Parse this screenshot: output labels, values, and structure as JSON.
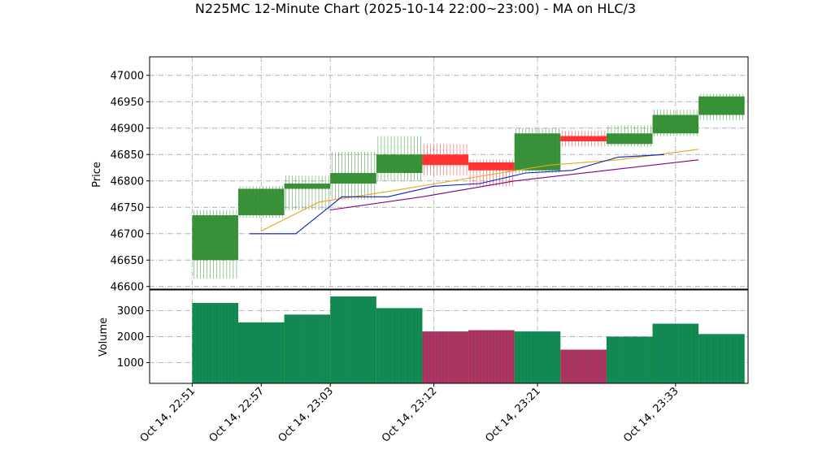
{
  "chart_data": {
    "type": "candlestick",
    "title": "N225MC 12-Minute Chart (2025-10-14 22:00~23:00) - MA on HLC/3",
    "price_panel": {
      "ylabel": "Price",
      "ylim": [
        46595,
        47035
      ],
      "yticks": [
        46600,
        46650,
        46700,
        46750,
        46800,
        46850,
        46900,
        46950,
        47000
      ],
      "grid": true
    },
    "volume_panel": {
      "ylabel": "Volume",
      "ylim": [
        200,
        3800
      ],
      "yticks": [
        1000,
        2000,
        3000
      ],
      "grid": true
    },
    "x_axis": {
      "minute_range": [
        -3.7,
        48.3
      ],
      "tick_minutes": [
        0,
        6,
        12,
        21,
        30,
        42
      ],
      "tick_labels": [
        "Oct 14, 22:51",
        "Oct 14, 22:57",
        "Oct 14, 23:03",
        "Oct 14, 23:12",
        "Oct 14, 23:21",
        "Oct 14, 23:33"
      ],
      "note_minutes": "minutes after 22:51"
    },
    "colors": {
      "up": "#2e8b2e",
      "down": "#ff2a2a",
      "ma_short": "#0a1fbf",
      "ma_mid": "#e6a817",
      "ma_long": "#800080",
      "volume_up": "#0f8a4a",
      "volume_down": "#b0305a"
    },
    "candles": [
      {
        "start": 0,
        "end": 4,
        "open": 46650,
        "close": 46735,
        "high": 46745,
        "low": 46615,
        "volume": 3300
      },
      {
        "start": 4,
        "end": 8,
        "open": 46735,
        "close": 46785,
        "high": 46790,
        "low": 46730,
        "volume": 2550
      },
      {
        "start": 8,
        "end": 12,
        "open": 46785,
        "close": 46795,
        "high": 46810,
        "low": 46745,
        "volume": 2850
      },
      {
        "start": 12,
        "end": 16,
        "open": 46795,
        "close": 46815,
        "high": 46855,
        "low": 46765,
        "volume": 3550
      },
      {
        "start": 16,
        "end": 20,
        "open": 46815,
        "close": 46850,
        "high": 46885,
        "low": 46800,
        "volume": 3100
      },
      {
        "start": 20,
        "end": 24,
        "open": 46850,
        "close": 46830,
        "high": 46870,
        "low": 46810,
        "volume": 2200
      },
      {
        "start": 24,
        "end": 28,
        "open": 46835,
        "close": 46820,
        "high": 46840,
        "low": 46790,
        "volume": 2250
      },
      {
        "start": 28,
        "end": 32,
        "open": 46820,
        "close": 46890,
        "high": 46900,
        "low": 46815,
        "volume": 2200
      },
      {
        "start": 32,
        "end": 36,
        "open": 46885,
        "close": 46875,
        "high": 46895,
        "low": 46865,
        "volume": 1500
      },
      {
        "start": 36,
        "end": 40,
        "open": 46870,
        "close": 46890,
        "high": 46905,
        "low": 46865,
        "volume": 2000
      },
      {
        "start": 40,
        "end": 44,
        "open": 46890,
        "close": 46925,
        "high": 46935,
        "low": 46885,
        "volume": 2500
      },
      {
        "start": 44,
        "end": 48,
        "open": 46925,
        "close": 46960,
        "high": 46965,
        "low": 46915,
        "volume": 2100
      }
    ],
    "ma_short": [
      [
        5,
        46700
      ],
      [
        9,
        46700
      ],
      [
        13,
        46770
      ],
      [
        17,
        46770
      ],
      [
        21,
        46790
      ],
      [
        25,
        46795
      ],
      [
        29,
        46815
      ],
      [
        33,
        46820
      ],
      [
        37,
        46845
      ],
      [
        41,
        46850
      ]
    ],
    "ma_mid": [
      [
        6,
        46705
      ],
      [
        11,
        46760
      ],
      [
        17,
        46780
      ],
      [
        24,
        46805
      ],
      [
        31,
        46830
      ],
      [
        37,
        46840
      ],
      [
        44,
        46860
      ]
    ],
    "ma_long": [
      [
        12,
        46745
      ],
      [
        20,
        46770
      ],
      [
        28,
        46800
      ],
      [
        36,
        46820
      ],
      [
        44,
        46840
      ]
    ]
  }
}
